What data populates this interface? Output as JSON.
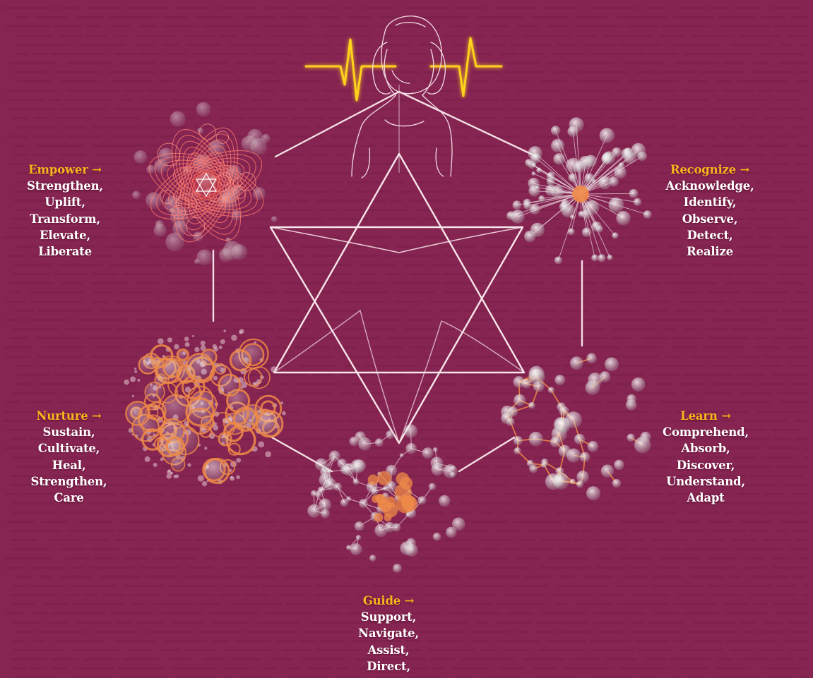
{
  "colors": {
    "background": "#862452",
    "heading": "#f7b51e",
    "body_text": "#ffffff",
    "lines": "#f4dfe4",
    "pulse": "#ffd21a",
    "orange": "#ee8a48"
  },
  "nodes": {
    "empower": {
      "heading": "Empower →",
      "items": [
        "Strengthen,",
        "Uplift,",
        "Transform,",
        "Elevate,",
        "Liberate"
      ]
    },
    "recognize": {
      "heading": "Recognize →",
      "items": [
        "Acknowledge,",
        "Identify,",
        "Observe,",
        "Detect,",
        "Realize"
      ]
    },
    "nurture": {
      "heading": "Nurture →",
      "items": [
        "Sustain,",
        "Cultivate,",
        "Heal,",
        "Strengthen,",
        "Care"
      ]
    },
    "learn": {
      "heading": "Learn →",
      "items": [
        "Comprehend,",
        "Absorb,",
        "Discover,",
        "Understand,",
        "Adapt"
      ]
    },
    "guide": {
      "heading": "Guide →",
      "items": [
        "Support,",
        "Navigate,",
        "Assist,",
        "Direct,"
      ]
    }
  }
}
